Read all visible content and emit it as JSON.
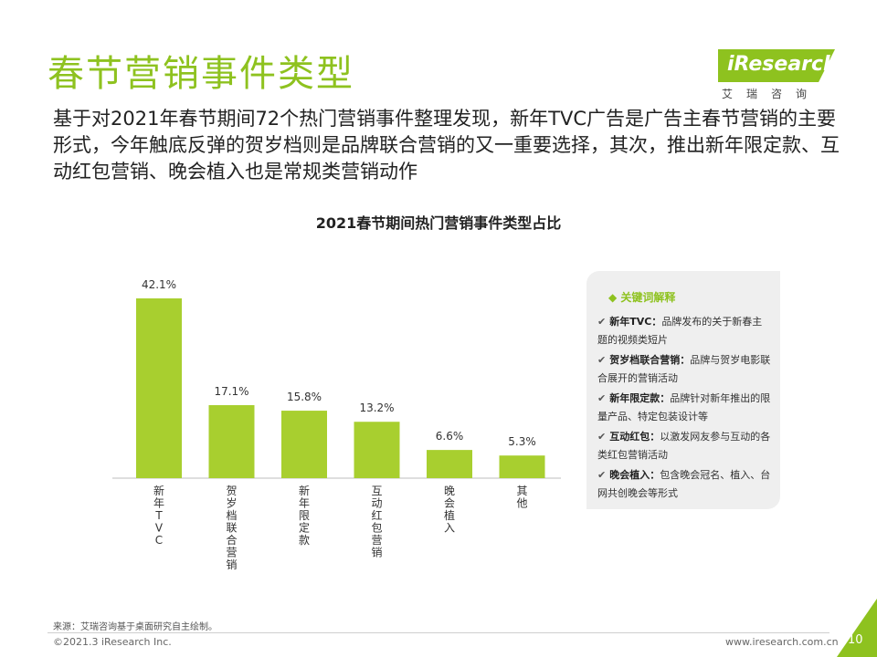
{
  "title": "春节营销事件类型",
  "logo": {
    "brand": "iResearch",
    "sub": "艾瑞咨询"
  },
  "subtitle": "基于对2021年春节期间72个热门营销事件整理发现，新年TVC广告是广告主春节营销的主要形式，今年触底反弹的贺岁档则是品牌联合营销的又一重要选择，其次，推出新年限定款、互动红包营销、晚会植入也是常规类营销动作",
  "chart_data": {
    "type": "bar",
    "title": "2021春节期间热门营销事件类型占比",
    "categories": [
      "新年TVC",
      "贺岁档联合营销",
      "新年限定款",
      "互动红包营销",
      "晚会植入",
      "其他"
    ],
    "values": [
      42.1,
      17.1,
      15.8,
      13.2,
      6.6,
      5.3
    ],
    "labels": [
      "42.1%",
      "17.1%",
      "15.8%",
      "13.2%",
      "6.6%",
      "5.3%"
    ],
    "unit": "%",
    "ylim": [
      0,
      42.1
    ],
    "color": "#a8cf2f",
    "xlabel": "",
    "ylabel": ""
  },
  "notes": {
    "title": "关键词解释",
    "items": [
      {
        "term": "新年TVC：",
        "desc": "品牌发布的关于新春主题的视频类短片"
      },
      {
        "term": "贺岁档联合营销：",
        "desc": "品牌与贺岁电影联合展开的营销活动"
      },
      {
        "term": "新年限定款：",
        "desc": "品牌针对新年推出的限量产品、特定包装设计等"
      },
      {
        "term": "互动红包：",
        "desc": "以激发网友参与互动的各类红包营销活动"
      },
      {
        "term": "晚会植入：",
        "desc": "包含晚会冠名、植入、台网共创晚会等形式"
      }
    ]
  },
  "footer": {
    "source": "来源：艾瑞咨询基于桌面研究自主绘制。",
    "copyright": "©2021.3 iResearch Inc.",
    "url": "www.iresearch.com.cn",
    "page": "10"
  },
  "colors": {
    "accent": "#8ec21f",
    "bar": "#a8cf2f"
  }
}
